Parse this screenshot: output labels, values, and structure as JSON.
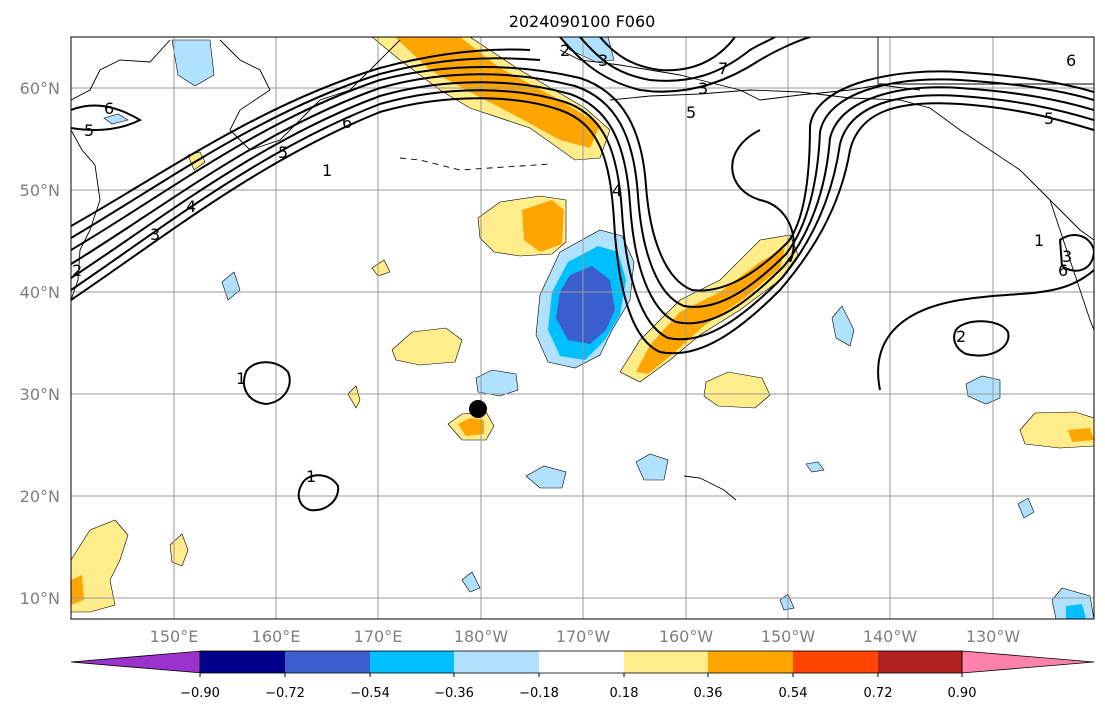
{
  "title": "2024090100 F060",
  "lat_labels": [
    "60°N",
    "50°N",
    "40°N",
    "30°N",
    "20°N",
    "10°N"
  ],
  "lon_labels": [
    "150°E",
    "160°E",
    "170°E",
    "180°W",
    "170°W",
    "160°W",
    "150°W",
    "140°W",
    "130°W"
  ],
  "colorbar": {
    "ticks": [
      "−0.90",
      "−0.72",
      "−0.54",
      "−0.36",
      "−0.18",
      "0.18",
      "0.36",
      "0.54",
      "0.72",
      "0.90"
    ],
    "colors": [
      "#9a32cd",
      "#00008b",
      "#3a5fcd",
      "#00bfff",
      "#b0e2ff",
      "#ffffff",
      "#ffec8b",
      "#ffa500",
      "#ff4500",
      "#b22222",
      "#ff82ab"
    ]
  },
  "contour_labels": [
    "6",
    "5",
    "6",
    "5",
    "1",
    "4",
    "3",
    "2",
    "7",
    "6",
    "5",
    "4",
    "3",
    "5",
    "6",
    "1",
    "3",
    "2",
    "1",
    "1",
    "2",
    "3"
  ],
  "fill_colors": {
    "light_blue": "#b0e2ff",
    "blue": "#00bfff",
    "royal_blue": "#3a5fcd",
    "light_yellow": "#ffec8b",
    "orange": "#ffa500"
  },
  "marker": {
    "name": "storm-center",
    "lon": "180°W",
    "lat": 28.5
  }
}
